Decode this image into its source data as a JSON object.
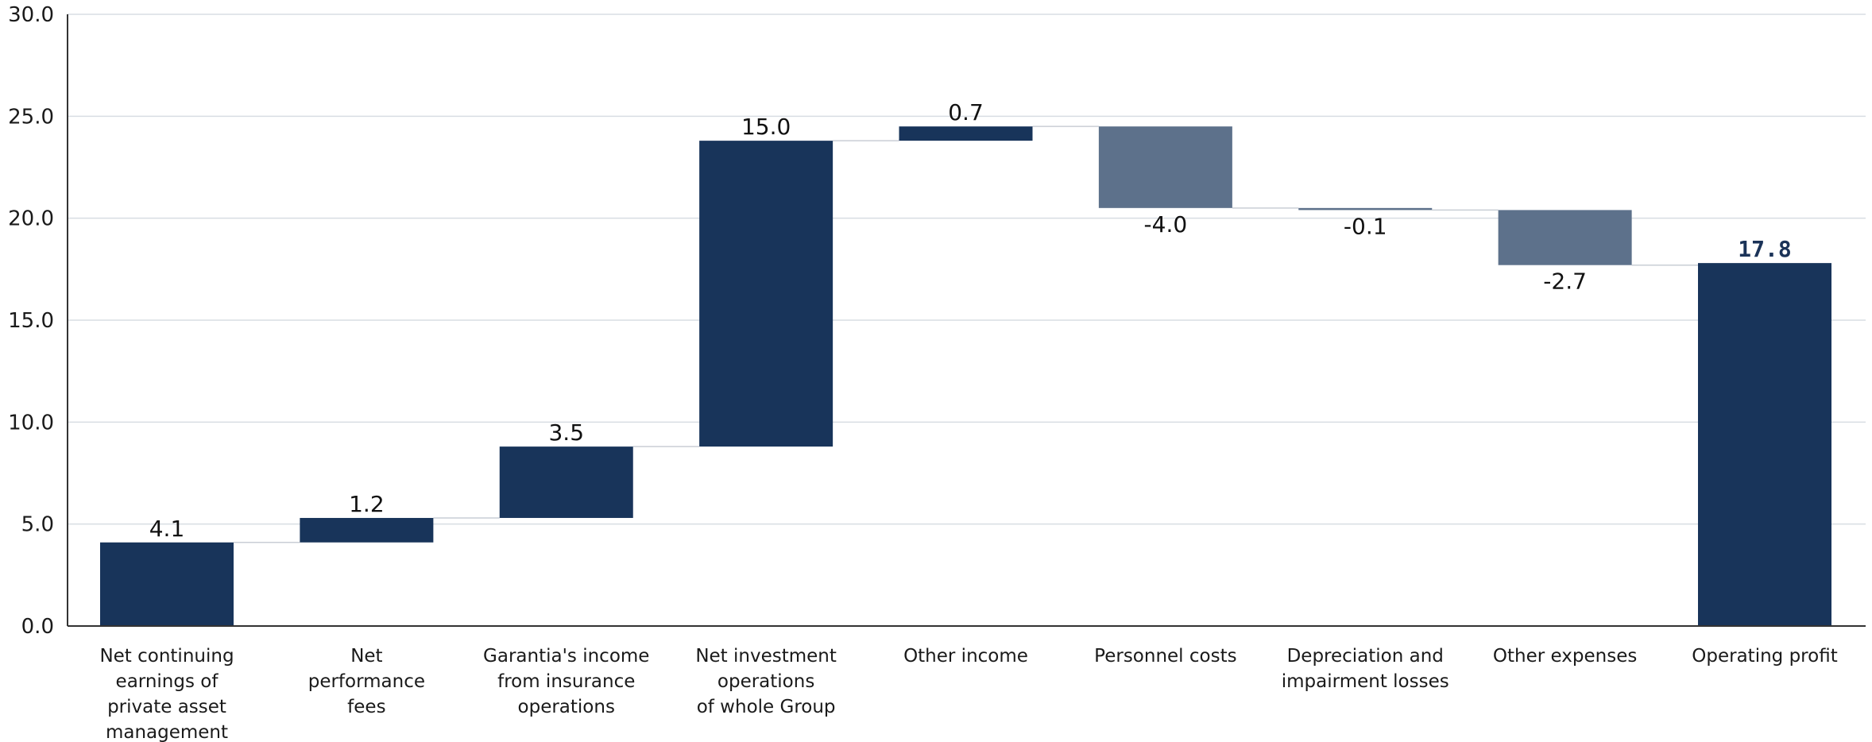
{
  "chart_data": {
    "type": "waterfall",
    "y_ticks": [
      "0.0",
      "5.0",
      "10.0",
      "15.0",
      "20.0",
      "25.0",
      "30.0"
    ],
    "ylim": [
      0,
      30
    ],
    "grid": true,
    "categories": [
      [
        "Net continuing",
        "earnings of",
        "private asset",
        "management"
      ],
      [
        "Net",
        "performance",
        "fees"
      ],
      [
        "Garantia's income",
        "from insurance",
        "operations"
      ],
      [
        "Net investment",
        "operations",
        "of whole Group"
      ],
      [
        "Other income"
      ],
      [
        "Personnel costs"
      ],
      [
        "Depreciation and",
        "impairment losses"
      ],
      [
        "Other expenses"
      ],
      [
        "Operating profit"
      ]
    ],
    "values": [
      4.1,
      1.2,
      3.5,
      15.0,
      0.7,
      -4.0,
      -0.1,
      -2.7,
      17.8
    ],
    "value_labels": [
      "4.1",
      "1.2",
      "3.5",
      "15.0",
      "0.7",
      "-4.0",
      "-0.1",
      "-2.7",
      "17.8"
    ],
    "is_total": [
      false,
      false,
      false,
      false,
      false,
      false,
      false,
      false,
      true
    ],
    "colors": {
      "positive": "#18345a",
      "negative": "#5d718b",
      "total": "#18345a",
      "grid": "#d8dde3",
      "axis": "#333333",
      "connector": "#c9ced5"
    }
  }
}
